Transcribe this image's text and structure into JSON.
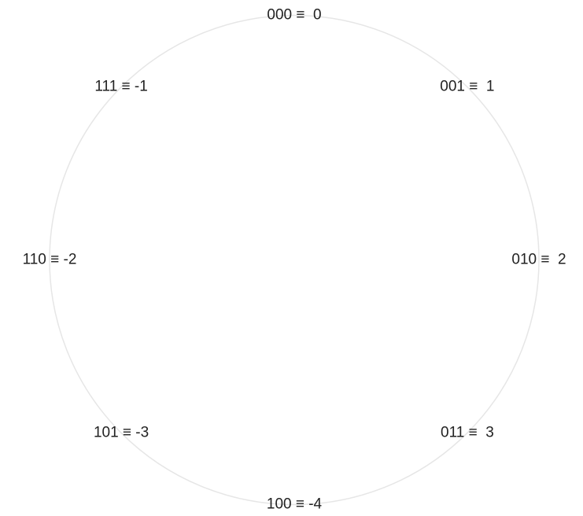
{
  "nodes": [
    {
      "label": "000 ≡  0"
    },
    {
      "label": "001 ≡  1"
    },
    {
      "label": "010 ≡  2"
    },
    {
      "label": "011 ≡  3"
    },
    {
      "label": "100 ≡ -4"
    },
    {
      "label": "101 ≡ -3"
    },
    {
      "label": "110 ≡ -2"
    },
    {
      "label": "111 ≡ -1"
    }
  ]
}
